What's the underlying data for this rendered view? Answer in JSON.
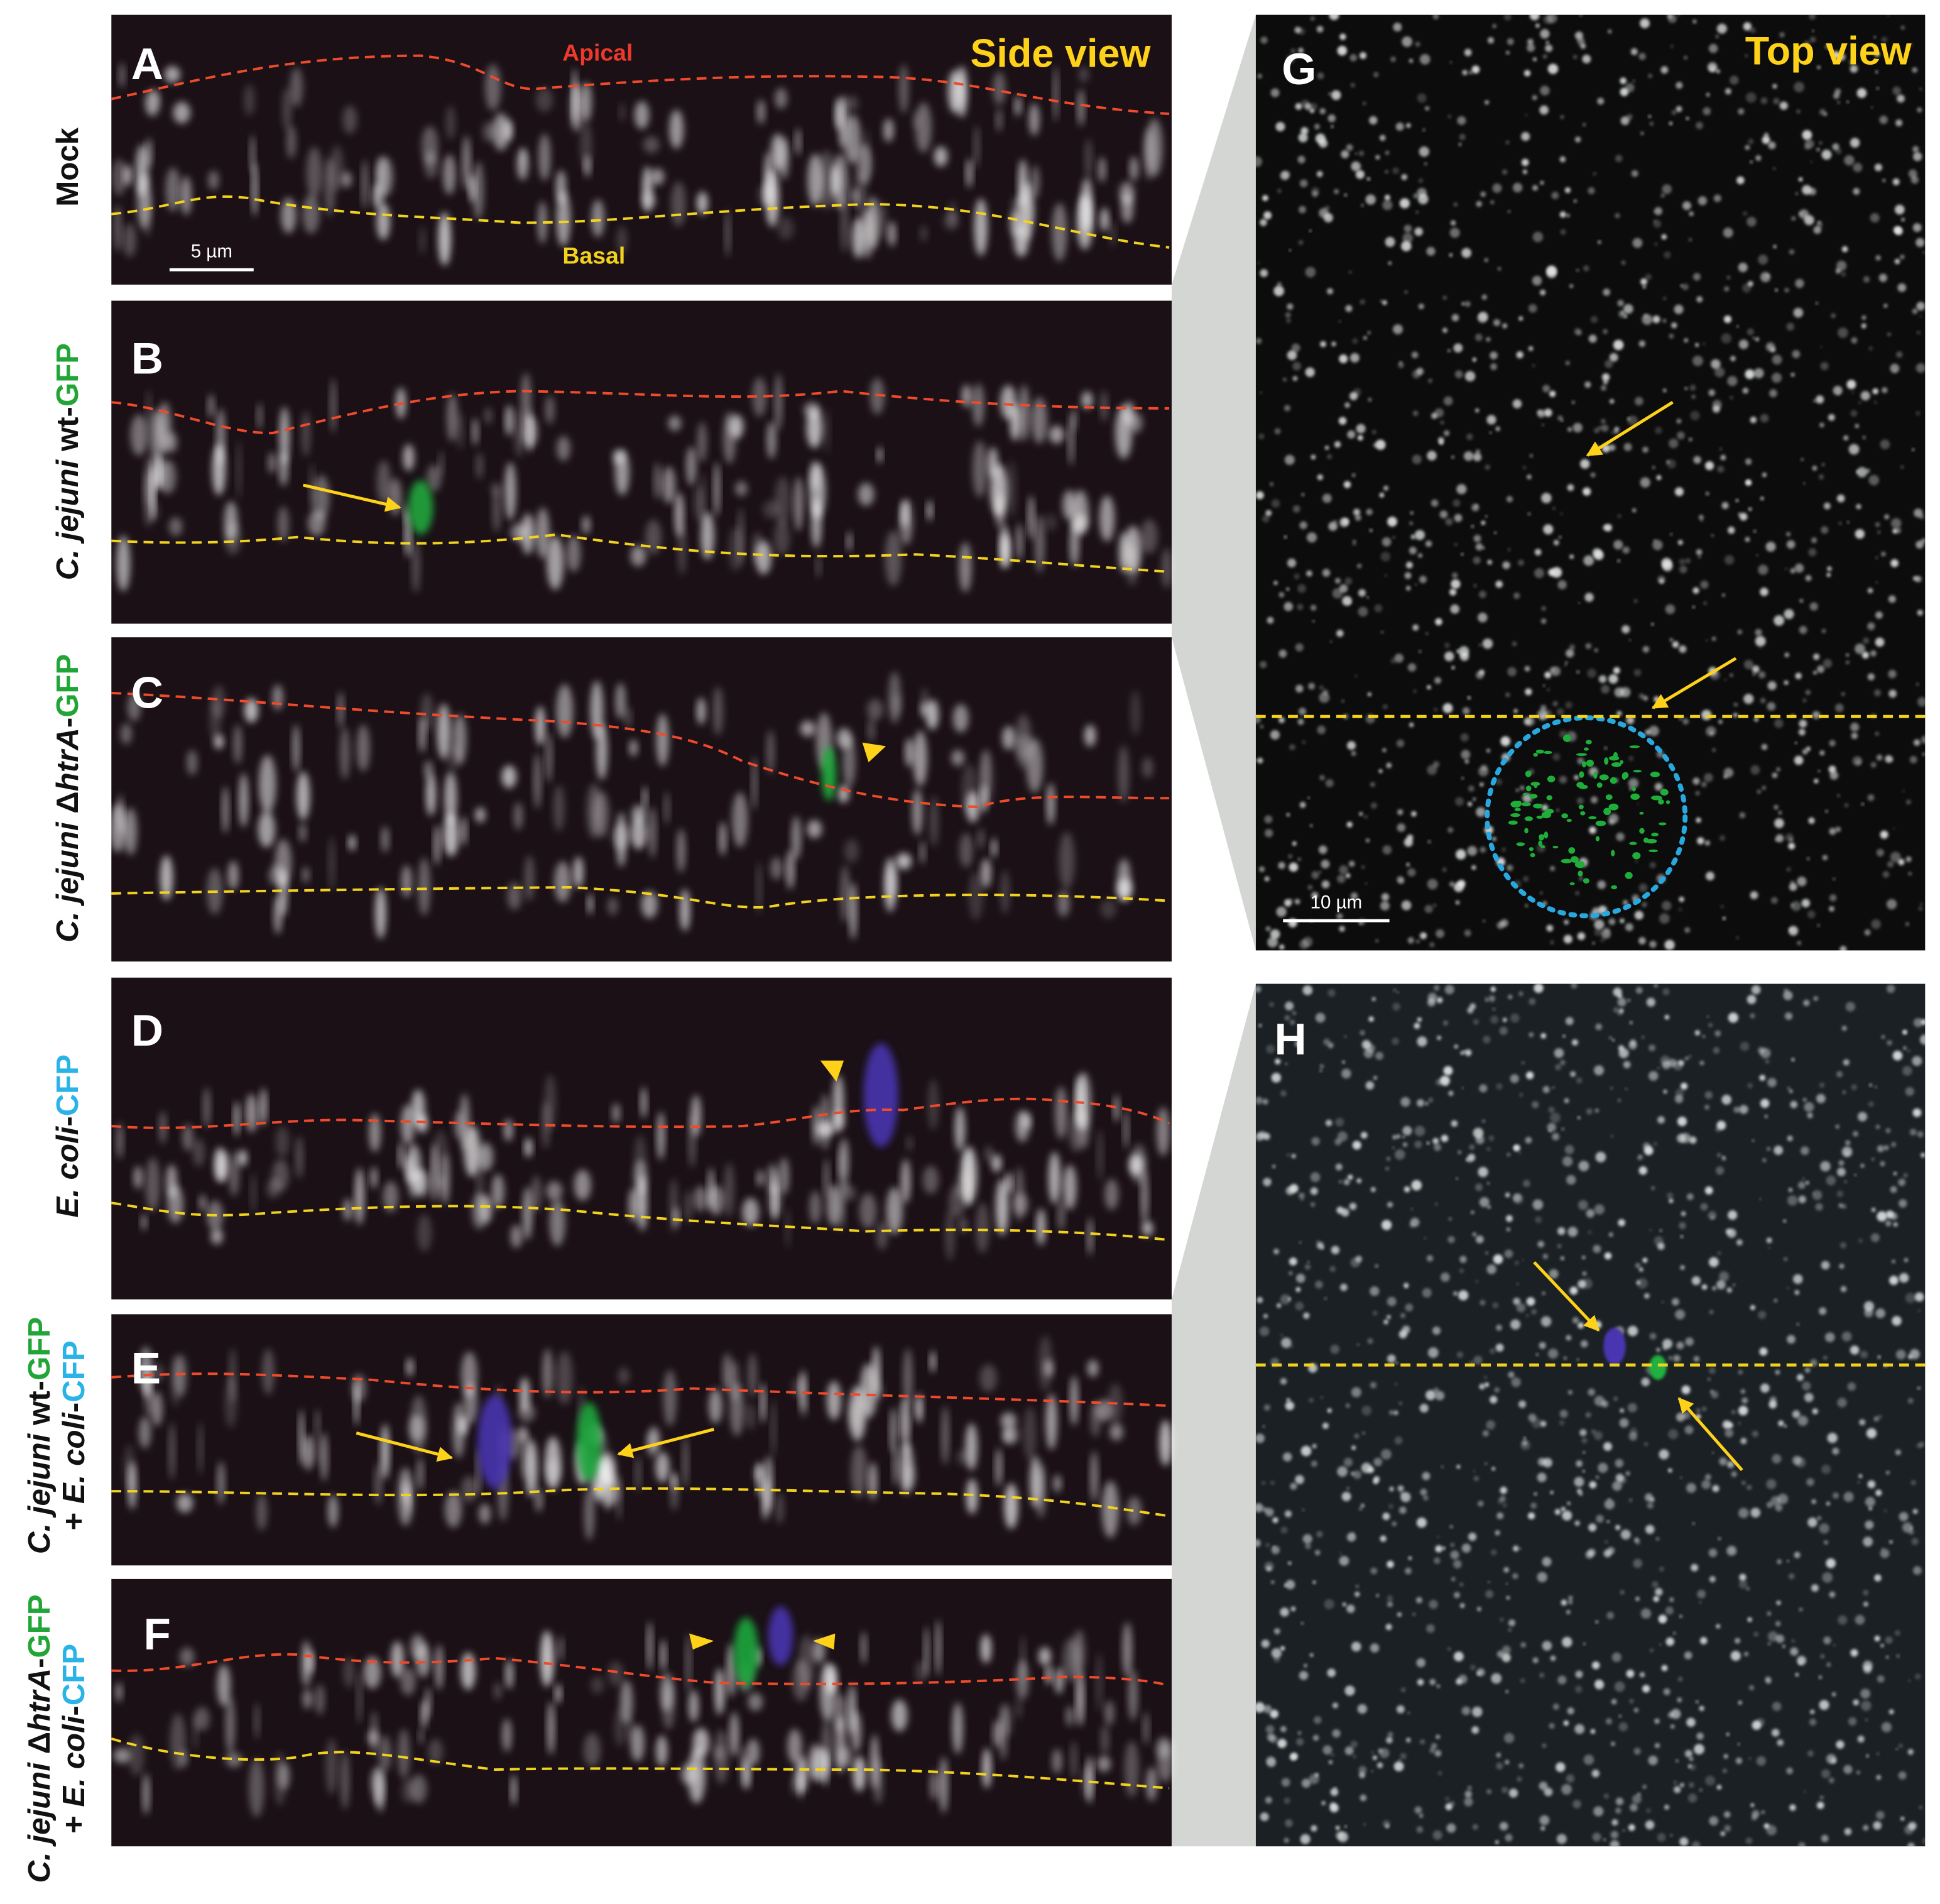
{
  "side_view": {
    "title": "Side view",
    "apical": "Apical",
    "basal": "Basal",
    "scale_bar": "5 µm"
  },
  "top_view": {
    "title": "Top view",
    "scale_bar": "10 µm"
  },
  "panels": [
    "A",
    "B",
    "C",
    "D",
    "E",
    "F",
    "G",
    "H"
  ],
  "row_labels": [
    [
      [
        "Mock"
      ]
    ],
    [
      [
        "C. jejuni",
        " wt-",
        "GFP"
      ]
    ],
    [
      [
        "C. jejuni",
        " Δ",
        "htrA",
        "-",
        "GFP"
      ]
    ],
    [
      [
        "E. coli",
        "-",
        "CFP"
      ]
    ],
    [
      [
        "C. jejuni",
        " wt-",
        "GFP"
      ],
      [
        "+ ",
        "E. coli",
        "-",
        "CFP"
      ]
    ],
    [
      [
        "C. jejuni",
        " Δ",
        "htrA",
        "-",
        "GFP"
      ],
      [
        "+ ",
        "E. coli",
        "-",
        "CFP"
      ]
    ]
  ]
}
